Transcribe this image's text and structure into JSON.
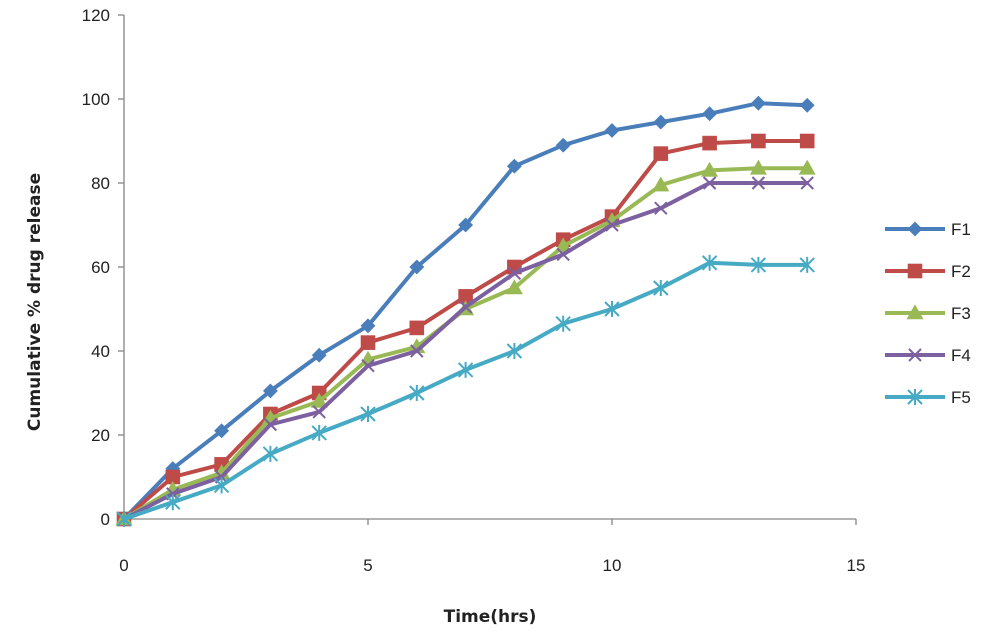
{
  "chart_data": {
    "type": "line",
    "title": "",
    "xlabel": "Time(hrs)",
    "ylabel": "Cumulative % drug release",
    "xlim": [
      0,
      15
    ],
    "ylim": [
      0,
      120
    ],
    "xticks": [
      0,
      5,
      10,
      15
    ],
    "yticks": [
      0,
      20,
      40,
      60,
      80,
      100,
      120
    ],
    "xtick_labels": [
      "0",
      "5",
      "10",
      "15"
    ],
    "ytick_labels": [
      "0",
      "20",
      "40",
      "60",
      "80",
      "100",
      "120"
    ],
    "grid": false,
    "legend_position": "right",
    "x": [
      0,
      1,
      2,
      3,
      4,
      5,
      6,
      7,
      8,
      9,
      10,
      11,
      12,
      13,
      14
    ],
    "series": [
      {
        "name": "F1",
        "color": "#4a7ebb",
        "marker": "diamond",
        "values": [
          0,
          12,
          21,
          30.5,
          39,
          46,
          60,
          70,
          84,
          89,
          92.5,
          94.5,
          96.5,
          99,
          98.5
        ]
      },
      {
        "name": "F2",
        "color": "#be4b48",
        "marker": "square",
        "values": [
          0,
          10,
          13,
          25,
          30,
          42,
          45.5,
          53,
          60,
          66.5,
          72,
          87,
          89.5,
          90,
          90
        ]
      },
      {
        "name": "F3",
        "color": "#98b954",
        "marker": "triangle",
        "values": [
          0,
          7,
          11,
          24,
          28,
          38,
          41,
          50,
          55,
          65,
          71,
          79.5,
          83,
          83.5,
          83.5
        ]
      },
      {
        "name": "F4",
        "color": "#7d60a0",
        "marker": "x",
        "values": [
          0,
          6,
          10,
          22.5,
          25.5,
          36.5,
          40,
          50.5,
          58.5,
          63,
          70,
          74,
          80,
          80,
          80
        ]
      },
      {
        "name": "F5",
        "color": "#46aac5",
        "marker": "asterisk",
        "values": [
          0,
          4,
          8,
          15.5,
          20.5,
          25,
          30,
          35.5,
          40,
          46.5,
          50,
          55,
          61,
          60.5,
          60.5
        ]
      }
    ]
  }
}
